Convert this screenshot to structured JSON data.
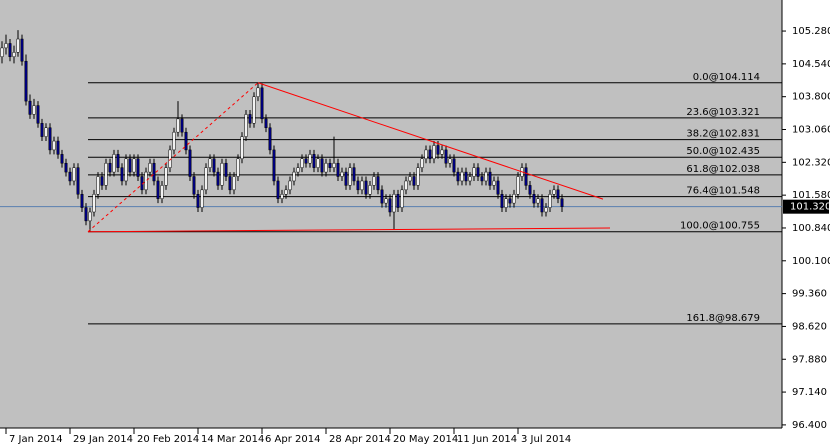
{
  "chart_data": {
    "type": "candlestick",
    "background": "#c0c0c0",
    "up_color": "#ffffff",
    "down_color": "#000080",
    "wick_color": "#000000",
    "ylim": [
      96.33,
      105.98
    ],
    "xlim": [
      -0.5,
      195
    ],
    "yticks": [
      {
        "value": 105.28,
        "label": "105.280"
      },
      {
        "value": 104.54,
        "label": "104.540"
      },
      {
        "value": 103.8,
        "label": "103.800"
      },
      {
        "value": 103.06,
        "label": "103.060"
      },
      {
        "value": 102.32,
        "label": "102.320"
      },
      {
        "value": 101.58,
        "label": "101.580"
      },
      {
        "value": 100.84,
        "label": "100.840"
      },
      {
        "value": 100.1,
        "label": "100.100"
      },
      {
        "value": 99.36,
        "label": "99.360"
      },
      {
        "value": 98.62,
        "label": "98.620"
      },
      {
        "value": 97.88,
        "label": "97.880"
      },
      {
        "value": 97.14,
        "label": "97.140"
      },
      {
        "value": 96.4,
        "label": "96.400"
      }
    ],
    "xticks": [
      {
        "value": 1,
        "label": "7 Jan 2014"
      },
      {
        "value": 17,
        "label": "29 Jan 2014"
      },
      {
        "value": 33,
        "label": "20 Feb 2014"
      },
      {
        "value": 49,
        "label": "14 Mar 2014"
      },
      {
        "value": 65,
        "label": "6 Apr 2014"
      },
      {
        "value": 81,
        "label": "28 Apr 2014"
      },
      {
        "value": 97,
        "label": "20 May 2014"
      },
      {
        "value": 113,
        "label": "11 Jun 2014"
      },
      {
        "value": 129,
        "label": "3 Jul 2014"
      }
    ],
    "fib_start": 21.5,
    "fib_levels": [
      {
        "value": 104.114,
        "label": "0.0@104.114"
      },
      {
        "value": 103.321,
        "label": "23.6@103.321"
      },
      {
        "value": 102.831,
        "label": "38.2@102.831"
      },
      {
        "value": 102.435,
        "label": "50.0@102.435"
      },
      {
        "value": 102.038,
        "label": "61.8@102.038"
      },
      {
        "value": 101.548,
        "label": "76.4@101.548"
      },
      {
        "value": 100.755,
        "label": "100.0@100.755"
      },
      {
        "value": 98.679,
        "label": "161.8@98.679"
      }
    ],
    "trendlines": [
      {
        "color": "#ff0000",
        "dash": false,
        "x": [
          64,
          150.25
        ],
        "y": [
          104.114,
          101.49
        ]
      },
      {
        "color": "#ff0000",
        "dash": false,
        "x": [
          21.5,
          152
        ],
        "y": [
          100.755,
          100.84
        ]
      },
      {
        "color": "#ff0000",
        "dash": true,
        "x": [
          21.5,
          64
        ],
        "y": [
          100.755,
          104.114
        ]
      }
    ],
    "last_price": {
      "value": 101.32,
      "label": "101.320"
    },
    "last_price_color": "#5a7fb0",
    "candles": [
      [
        104.7,
        105.05,
        104.55,
        104.9
      ],
      [
        104.9,
        105.2,
        104.75,
        105.0
      ],
      [
        105.0,
        105.1,
        104.6,
        104.7
      ],
      [
        104.7,
        104.95,
        104.55,
        104.8
      ],
      [
        104.8,
        105.3,
        104.7,
        105.1
      ],
      [
        105.1,
        105.2,
        104.5,
        104.6
      ],
      [
        104.6,
        104.75,
        103.6,
        103.7
      ],
      [
        103.7,
        103.85,
        103.3,
        103.4
      ],
      [
        103.4,
        103.75,
        103.3,
        103.6
      ],
      [
        103.6,
        103.7,
        103.1,
        103.2
      ],
      [
        103.2,
        103.3,
        102.8,
        102.9
      ],
      [
        102.9,
        103.2,
        102.8,
        103.1
      ],
      [
        103.1,
        103.2,
        102.5,
        102.6
      ],
      [
        102.6,
        102.9,
        102.5,
        102.8
      ],
      [
        102.8,
        102.9,
        102.4,
        102.5
      ],
      [
        102.5,
        102.6,
        102.2,
        102.3
      ],
      [
        102.3,
        102.4,
        102.0,
        102.1
      ],
      [
        102.1,
        102.2,
        101.8,
        101.9
      ],
      [
        101.9,
        102.3,
        101.8,
        102.2
      ],
      [
        102.2,
        102.3,
        101.5,
        101.6
      ],
      [
        101.6,
        101.7,
        101.2,
        101.3
      ],
      [
        101.3,
        101.4,
        100.9,
        101.0
      ],
      [
        101.0,
        101.3,
        100.76,
        101.2
      ],
      [
        101.2,
        101.7,
        101.1,
        101.6
      ],
      [
        101.6,
        102.1,
        101.5,
        102.0
      ],
      [
        102.0,
        102.1,
        101.7,
        101.8
      ],
      [
        101.8,
        102.4,
        101.7,
        102.3
      ],
      [
        102.3,
        102.4,
        102.0,
        102.1
      ],
      [
        102.1,
        102.6,
        102.0,
        102.5
      ],
      [
        102.5,
        102.6,
        102.1,
        102.2
      ],
      [
        102.2,
        102.3,
        101.8,
        101.9
      ],
      [
        101.9,
        102.5,
        101.8,
        102.4
      ],
      [
        102.4,
        102.5,
        102.0,
        102.1
      ],
      [
        102.1,
        102.5,
        102.0,
        102.4
      ],
      [
        102.4,
        102.5,
        101.9,
        102.0
      ],
      [
        102.0,
        102.1,
        101.6,
        101.7
      ],
      [
        101.7,
        102.2,
        101.6,
        102.1
      ],
      [
        102.1,
        102.4,
        102.0,
        102.3
      ],
      [
        102.3,
        102.4,
        101.8,
        101.9
      ],
      [
        101.9,
        102.0,
        101.4,
        101.5
      ],
      [
        101.5,
        101.9,
        101.4,
        101.8
      ],
      [
        101.8,
        102.3,
        101.7,
        102.2
      ],
      [
        102.2,
        102.7,
        102.1,
        102.6
      ],
      [
        102.6,
        103.1,
        102.5,
        103.0
      ],
      [
        103.0,
        103.7,
        102.9,
        103.3
      ],
      [
        103.3,
        103.4,
        102.9,
        103.0
      ],
      [
        103.0,
        103.1,
        102.5,
        102.6
      ],
      [
        102.6,
        102.7,
        101.9,
        102.0
      ],
      [
        102.0,
        102.1,
        101.5,
        101.6
      ],
      [
        101.6,
        101.7,
        101.2,
        101.3
      ],
      [
        101.3,
        101.8,
        101.2,
        101.7
      ],
      [
        101.7,
        102.3,
        101.6,
        102.2
      ],
      [
        102.2,
        102.5,
        102.1,
        102.4
      ],
      [
        102.4,
        102.5,
        102.0,
        102.1
      ],
      [
        102.1,
        102.2,
        101.7,
        101.8
      ],
      [
        101.8,
        102.4,
        101.7,
        102.3
      ],
      [
        102.3,
        102.4,
        101.9,
        102.0
      ],
      [
        102.0,
        102.1,
        101.6,
        101.7
      ],
      [
        101.7,
        102.1,
        101.6,
        102.0
      ],
      [
        102.0,
        102.5,
        101.9,
        102.4
      ],
      [
        102.4,
        103.0,
        102.3,
        102.9
      ],
      [
        102.9,
        103.5,
        102.8,
        103.4
      ],
      [
        103.4,
        103.5,
        103.1,
        103.2
      ],
      [
        103.2,
        103.9,
        103.1,
        103.8
      ],
      [
        103.8,
        104.11,
        103.7,
        104.0
      ],
      [
        104.0,
        104.1,
        103.2,
        103.3
      ],
      [
        103.3,
        103.4,
        103.0,
        103.1
      ],
      [
        103.1,
        103.2,
        102.5,
        102.6
      ],
      [
        102.6,
        102.7,
        101.8,
        101.9
      ],
      [
        101.9,
        102.0,
        101.4,
        101.5
      ],
      [
        101.5,
        101.7,
        101.4,
        101.6
      ],
      [
        101.6,
        101.8,
        101.5,
        101.7
      ],
      [
        101.7,
        102.0,
        101.6,
        101.9
      ],
      [
        101.9,
        102.2,
        101.8,
        102.1
      ],
      [
        102.1,
        102.3,
        102.0,
        102.2
      ],
      [
        102.2,
        102.5,
        102.1,
        102.4
      ],
      [
        102.4,
        102.5,
        102.2,
        102.3
      ],
      [
        102.3,
        102.6,
        102.2,
        102.5
      ],
      [
        102.5,
        102.6,
        102.1,
        102.2
      ],
      [
        102.2,
        102.5,
        102.1,
        102.4
      ],
      [
        102.4,
        102.5,
        102.0,
        102.1
      ],
      [
        102.1,
        102.4,
        102.0,
        102.3
      ],
      [
        102.3,
        102.4,
        102.1,
        102.2
      ],
      [
        102.2,
        102.9,
        102.1,
        102.3
      ],
      [
        102.3,
        102.4,
        101.9,
        102.0
      ],
      [
        102.0,
        102.2,
        101.9,
        102.1
      ],
      [
        102.1,
        102.2,
        101.7,
        101.8
      ],
      [
        101.8,
        102.3,
        101.7,
        102.2
      ],
      [
        102.2,
        102.3,
        101.8,
        101.9
      ],
      [
        101.9,
        102.0,
        101.6,
        101.7
      ],
      [
        101.7,
        102.0,
        101.6,
        101.9
      ],
      [
        101.9,
        102.0,
        101.5,
        101.6
      ],
      [
        101.6,
        101.9,
        101.5,
        101.8
      ],
      [
        101.8,
        102.1,
        101.7,
        102.0
      ],
      [
        102.0,
        102.1,
        101.6,
        101.7
      ],
      [
        101.7,
        101.8,
        101.3,
        101.4
      ],
      [
        101.4,
        101.6,
        101.3,
        101.5
      ],
      [
        101.5,
        101.6,
        101.1,
        101.2
      ],
      [
        101.2,
        101.7,
        100.8,
        101.6
      ],
      [
        101.6,
        101.7,
        101.2,
        101.3
      ],
      [
        101.3,
        101.8,
        101.2,
        101.7
      ],
      [
        101.7,
        102.0,
        101.6,
        101.9
      ],
      [
        101.9,
        102.1,
        101.8,
        102.0
      ],
      [
        102.0,
        102.1,
        101.7,
        101.8
      ],
      [
        101.8,
        102.3,
        101.7,
        102.2
      ],
      [
        102.2,
        102.5,
        102.1,
        102.4
      ],
      [
        102.4,
        102.7,
        102.3,
        102.6
      ],
      [
        102.6,
        102.7,
        102.3,
        102.4
      ],
      [
        102.4,
        102.8,
        102.3,
        102.7
      ],
      [
        102.7,
        102.8,
        102.4,
        102.5
      ],
      [
        102.5,
        102.7,
        102.4,
        102.6
      ],
      [
        102.6,
        102.7,
        102.2,
        102.3
      ],
      [
        102.3,
        102.5,
        102.2,
        102.4
      ],
      [
        102.4,
        102.5,
        102.0,
        102.1
      ],
      [
        102.1,
        102.2,
        101.8,
        101.9
      ],
      [
        101.9,
        102.2,
        101.8,
        102.1
      ],
      [
        102.1,
        102.2,
        101.8,
        101.9
      ],
      [
        101.9,
        102.1,
        101.8,
        102.0
      ],
      [
        102.0,
        102.3,
        101.9,
        102.2
      ],
      [
        102.2,
        102.3,
        101.9,
        102.0
      ],
      [
        102.0,
        102.1,
        101.8,
        101.9
      ],
      [
        101.9,
        102.2,
        101.8,
        102.1
      ],
      [
        102.1,
        102.2,
        101.7,
        101.8
      ],
      [
        101.8,
        102.0,
        101.7,
        101.9
      ],
      [
        101.9,
        102.0,
        101.5,
        101.6
      ],
      [
        101.6,
        101.7,
        101.2,
        101.3
      ],
      [
        101.3,
        101.6,
        101.2,
        101.5
      ],
      [
        101.5,
        101.6,
        101.3,
        101.4
      ],
      [
        101.4,
        101.7,
        101.3,
        101.6
      ],
      [
        101.6,
        102.1,
        101.5,
        102.0
      ],
      [
        102.0,
        102.3,
        101.9,
        102.2
      ],
      [
        102.2,
        102.3,
        101.7,
        101.8
      ],
      [
        101.8,
        101.9,
        101.5,
        101.6
      ],
      [
        101.6,
        101.7,
        101.3,
        101.4
      ],
      [
        101.4,
        101.6,
        101.3,
        101.5
      ],
      [
        101.5,
        101.6,
        101.1,
        101.2
      ],
      [
        101.2,
        101.4,
        101.1,
        101.3
      ],
      [
        101.3,
        101.7,
        101.2,
        101.6
      ],
      [
        101.6,
        101.8,
        101.5,
        101.7
      ],
      [
        101.7,
        101.8,
        101.4,
        101.5
      ],
      [
        101.5,
        101.6,
        101.2,
        101.32
      ]
    ]
  }
}
